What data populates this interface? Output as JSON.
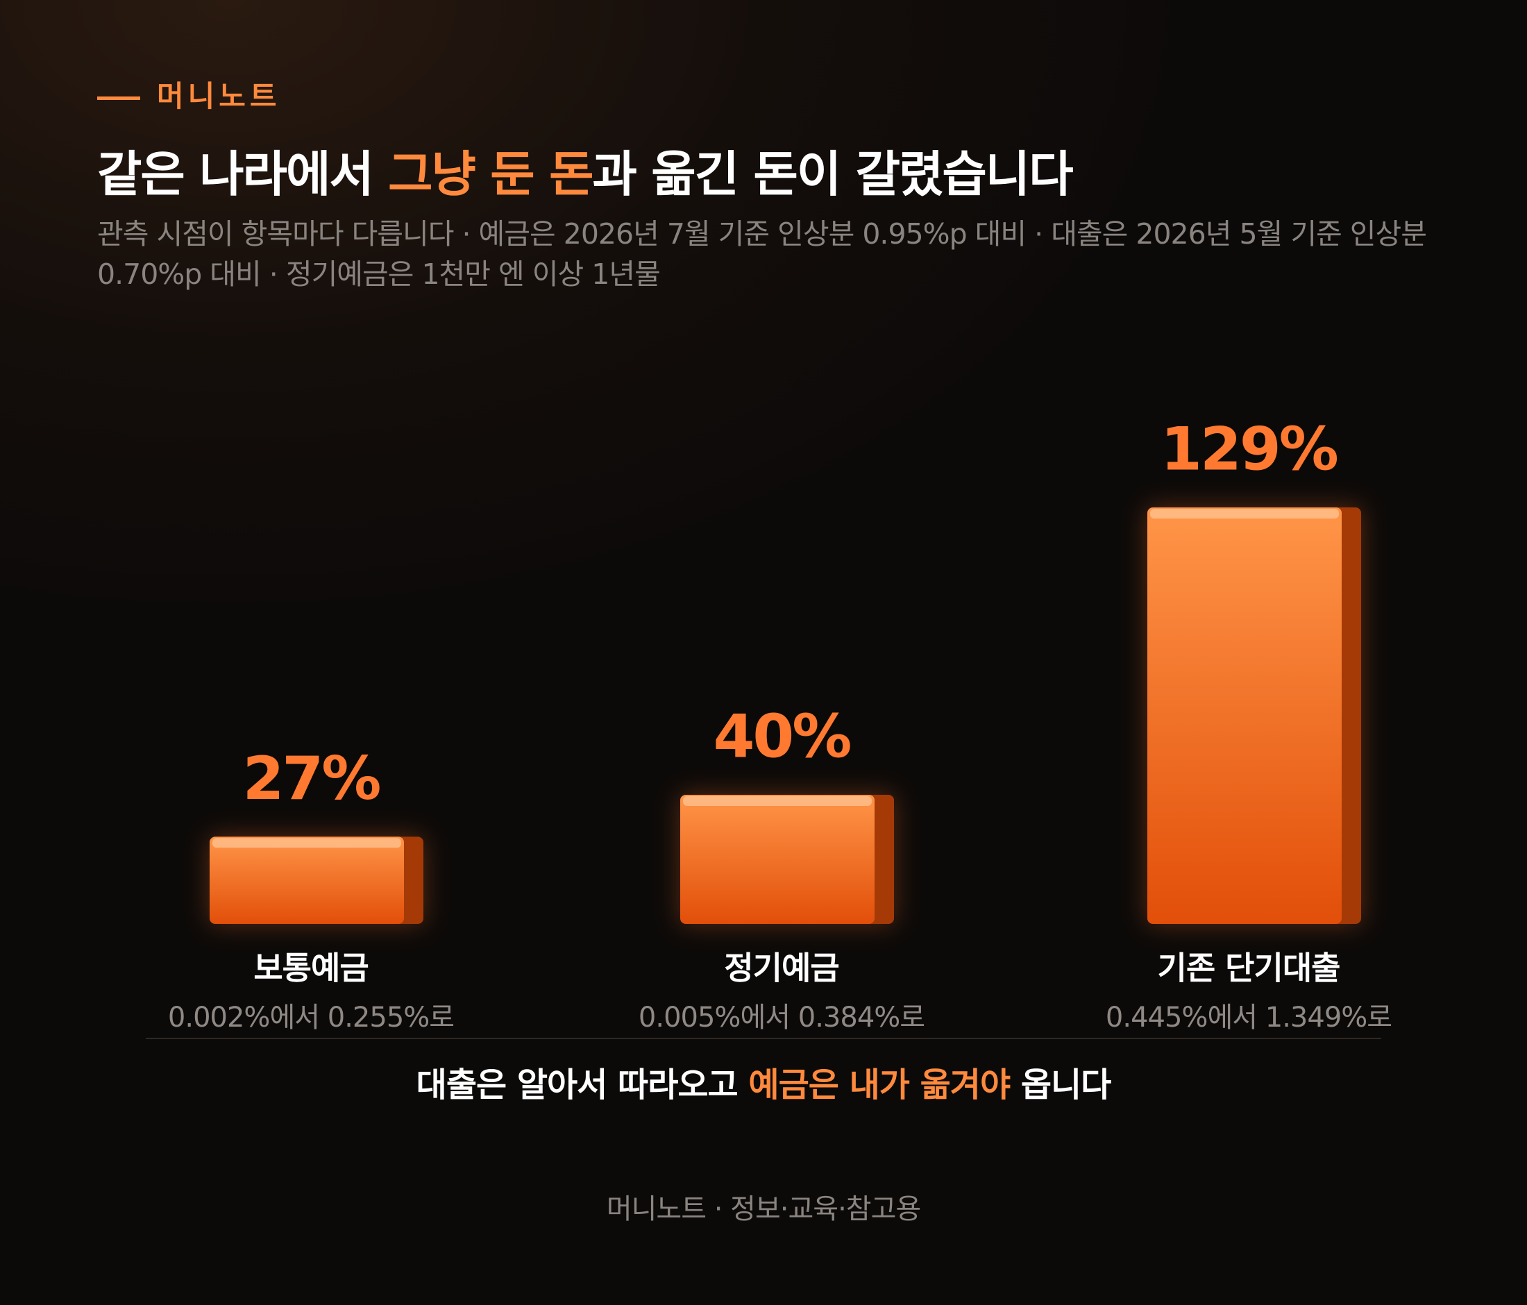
{
  "chart_data": {
    "type": "bar",
    "brand": "머니노트",
    "title_parts": [
      {
        "text": "같은 나라에서 ",
        "color": "#ffffff"
      },
      {
        "text": "그냥 둔 돈",
        "color": "#ff8a3d"
      },
      {
        "text": "과 옮긴 돈이 갈렸습니다",
        "color": "#ffffff"
      }
    ],
    "subtitle": "관측 시점이 항목마다 다릅니다 · 예금은 2026년 7월 기준 인상분 0.95%p 대비 · 대출은 2026년 5월 기준 인상분 0.70%p 대비 · 정기예금은 1천만 엔 이상 1년물",
    "categories": [
      "보통예금",
      "정기예금",
      "기존 단기대출"
    ],
    "values": [
      27,
      40,
      129
    ],
    "value_labels": [
      "27%",
      "40%",
      "129%"
    ],
    "sublabels": [
      "0.002%에서 0.255%로",
      "0.005%에서 0.384%로",
      "0.445%에서 1.349%로"
    ],
    "color": "#f26a22",
    "note_parts": [
      {
        "text": "대출은 알아서 따라오고 ",
        "color": "#ffffff"
      },
      {
        "text": "예금은 내가 옮겨야",
        "color": "#ff8a3d"
      },
      {
        "text": " 옵니다",
        "color": "#ffffff"
      }
    ],
    "footer": "머니노트 · 정보·교육·참고용"
  }
}
